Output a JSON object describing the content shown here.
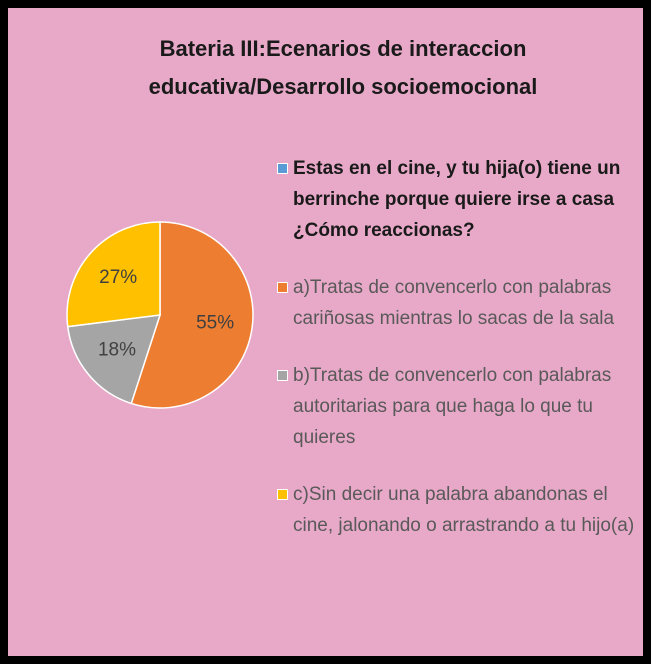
{
  "chart_data": {
    "type": "pie",
    "title": "Bateria III:Ecenarios de interaccion educativa/Desarrollo socioemocional",
    "categories": [
      "Estas en el cine, y tu hija(o) tiene un berrinche porque quiere irse a casa ¿Cómo reaccionas?",
      "a)Tratas de convencerlo con palabras cariñosas mientras lo sacas de la sala",
      "b)Tratas de convencerlo con palabras autoritarias para que haga lo que tu quieres",
      "c)Sin decir una palabra abandonas el cine, jalonando o arrastrando a tu hijo(a)"
    ],
    "values": [
      0,
      55,
      18,
      27
    ],
    "value_labels": [
      null,
      "55%",
      "18%",
      "27%"
    ],
    "colors": [
      "#5B9BD5",
      "#ED7D31",
      "#A5A5A5",
      "#FFC000"
    ],
    "legend": "right"
  }
}
